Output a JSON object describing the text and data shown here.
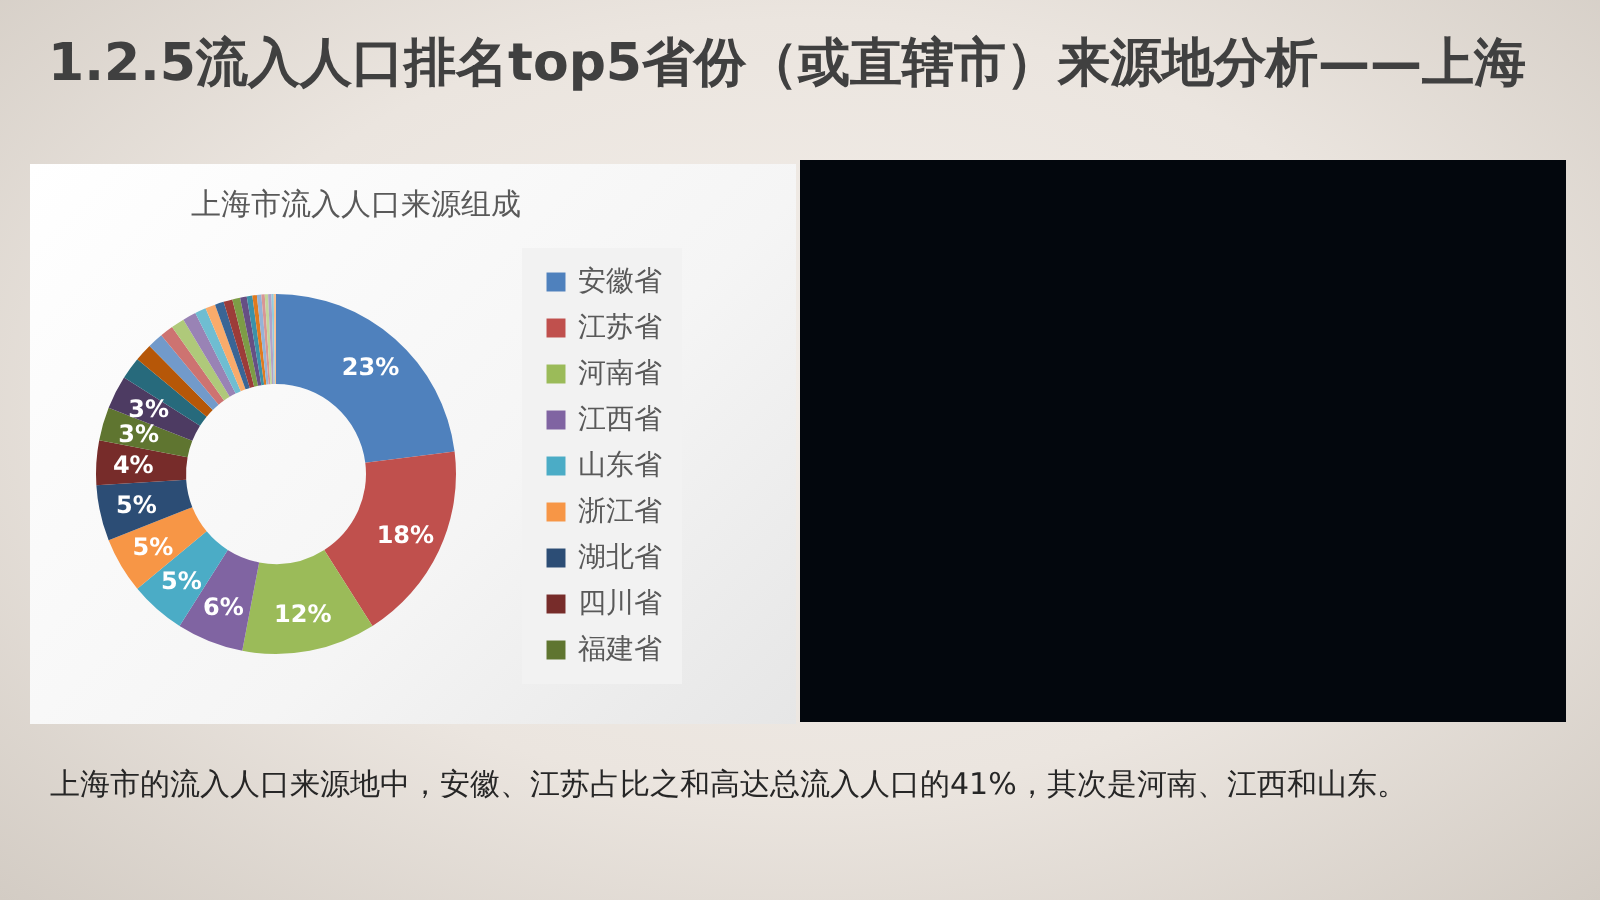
{
  "chart_data": {
    "type": "donut",
    "title": "上海市流入人口来源组成",
    "annotations": [
      "1.2.5流入人口排名top5省份（或直辖市）来源地分析——上海",
      "上海市的流入人口来源地中，安徽、江苏占比之和高达总流入人口的41%，其次是河南、江西和山东。"
    ],
    "categories": [
      "安徽省",
      "江苏省",
      "河南省",
      "江西省",
      "山东省",
      "浙江省",
      "湖北省",
      "四川省",
      "福建省",
      null,
      null,
      null,
      null,
      null,
      null,
      null,
      null,
      null,
      null,
      null,
      null,
      null,
      null,
      null,
      null,
      null,
      null,
      null,
      null,
      null
    ],
    "values": [
      23,
      18,
      12,
      6,
      5,
      5,
      5,
      4,
      3,
      3,
      2.0,
      1.6,
      1.4,
      1.2,
      1.2,
      1.2,
      1.0,
      0.9,
      0.8,
      0.8,
      0.7,
      0.6,
      0.5,
      0.4,
      0.4,
      0.3,
      0.3,
      0.3,
      0.2,
      0.2
    ],
    "value_labels": [
      "23%",
      "18%",
      "12%",
      "6%",
      "5%",
      "5%",
      "5%",
      "4%",
      "3%",
      "3%",
      null,
      null,
      null,
      null,
      null,
      null,
      null,
      null,
      null,
      null,
      null,
      null,
      null,
      null,
      null,
      null,
      null,
      null,
      null,
      null
    ],
    "colors": [
      "#4f81bd",
      "#c0504d",
      "#9bbb59",
      "#8064a2",
      "#4bacc6",
      "#f79646",
      "#2c4d75",
      "#772c2a",
      "#5f7530",
      "#4d3b62",
      "#276a7c",
      "#b65708",
      "#729aca",
      "#cd7371",
      "#afc97a",
      "#9983b5",
      "#6fbdd1",
      "#f9ab6b",
      "#3a6595",
      "#9c3c39",
      "#7d9c46",
      "#664f84",
      "#3c91a8",
      "#e07a1f",
      "#95b3d7",
      "#d99694",
      "#c3d69b",
      "#b3a2c7",
      "#93cddd",
      "#fac090"
    ],
    "legend": "right"
  }
}
